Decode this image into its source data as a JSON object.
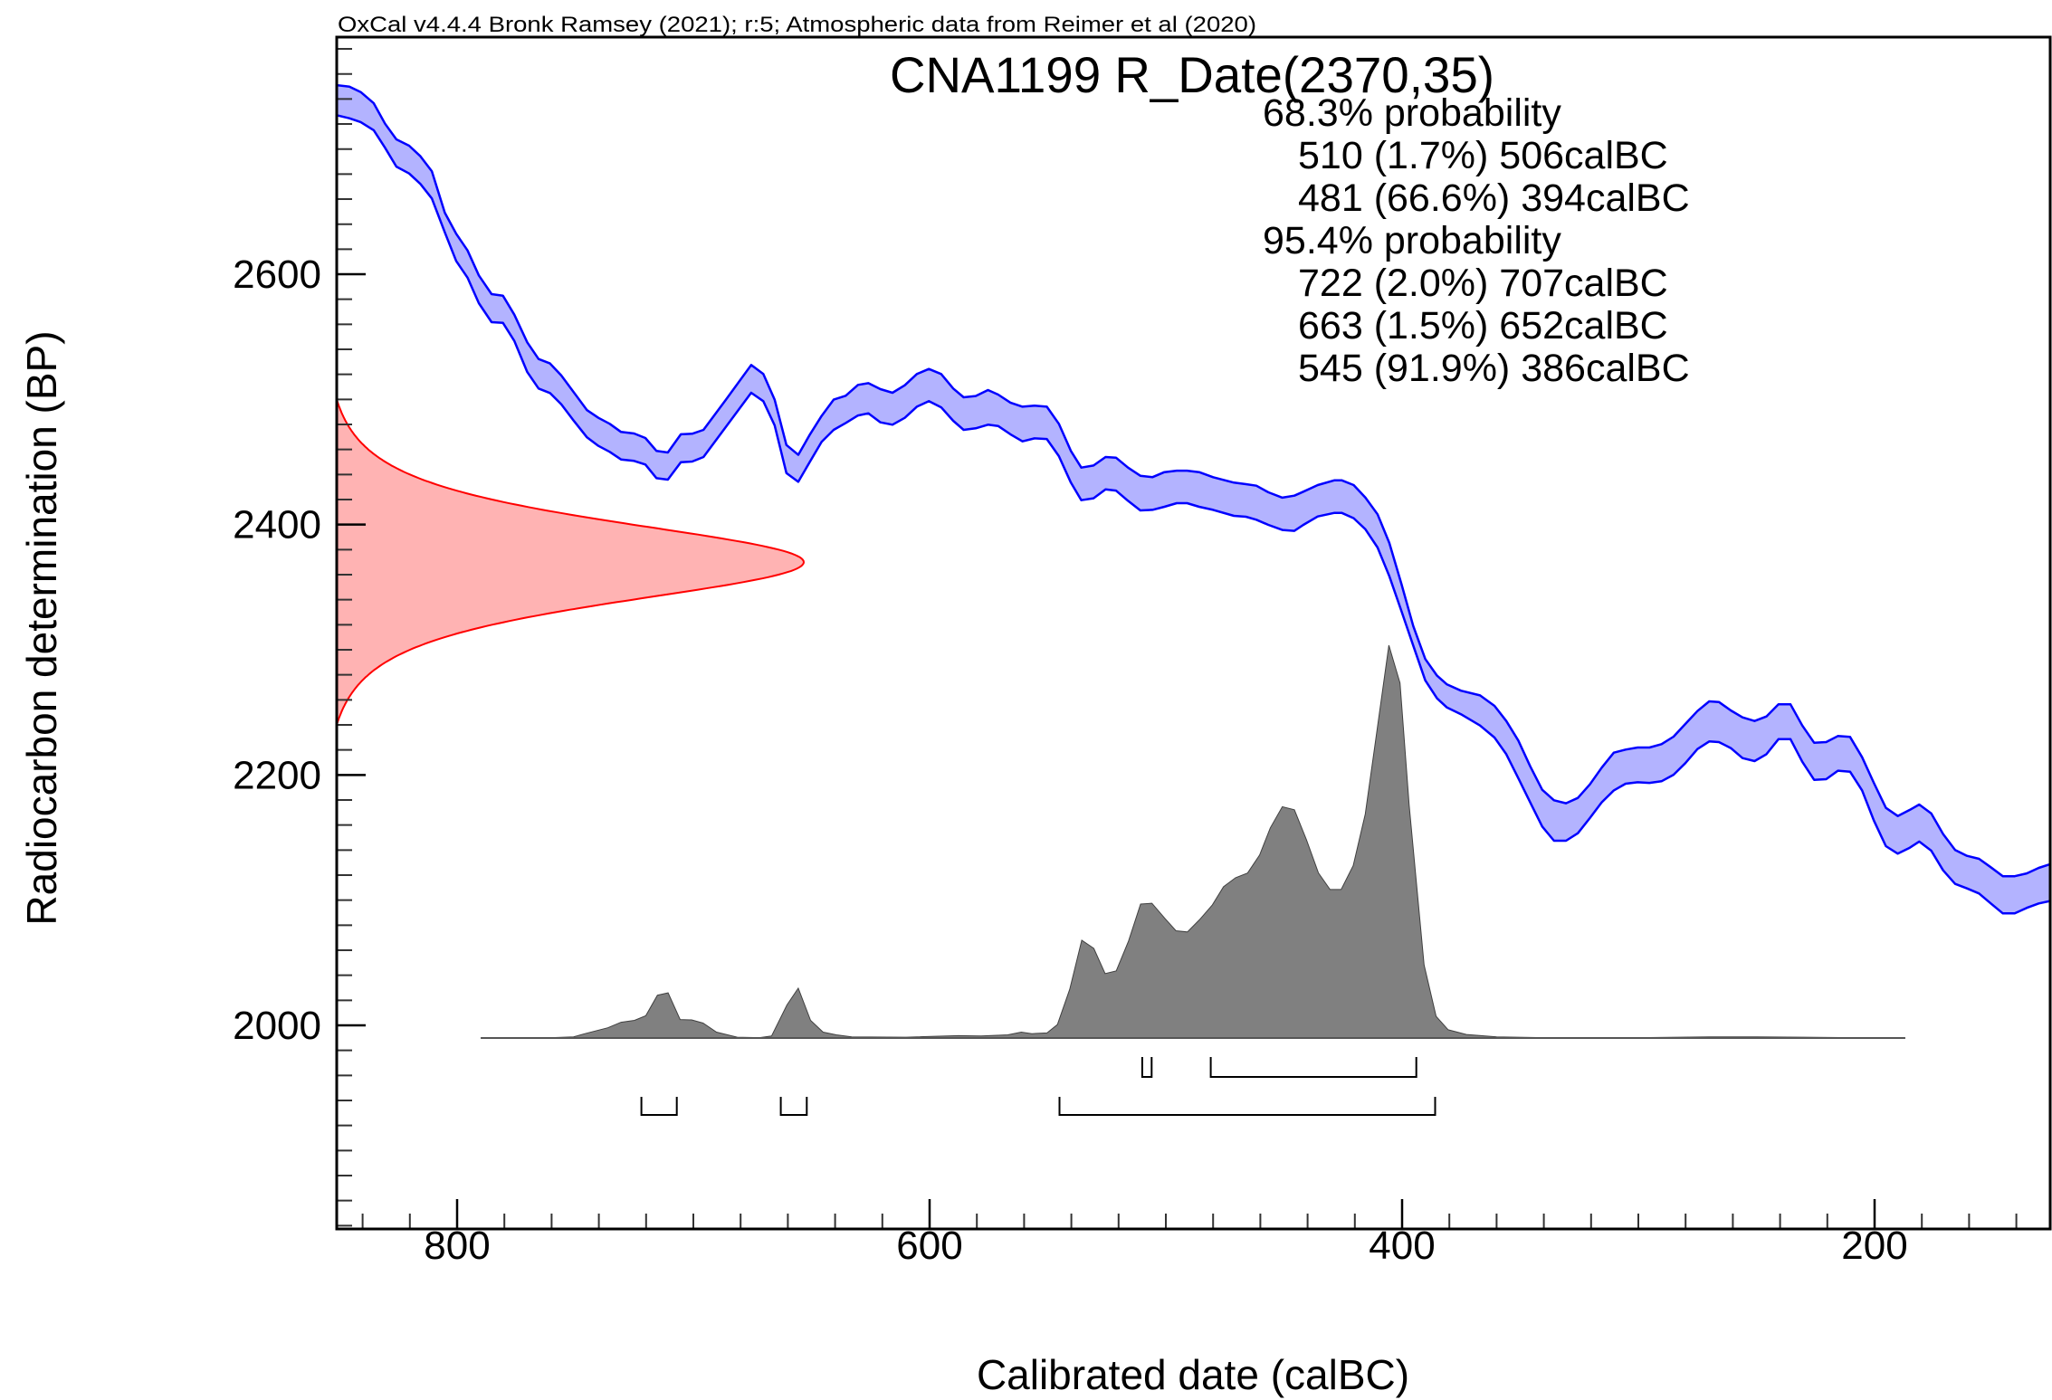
{
  "header": "OxCal v4.4.4 Bronk Ramsey (2021); r:5; Atmospheric data from Reimer et al (2020)",
  "chart_data": {
    "type": "area",
    "title": "CNA1199 R_Date(2370,35)",
    "xlabel": "Calibrated date (calBC)",
    "ylabel": "Radiocarbon determination (BP)",
    "xlim": [
      851,
      126
    ],
    "ylim": [
      1837,
      2789
    ],
    "x_ticks": [
      800,
      600,
      400,
      200
    ],
    "y_ticks": [
      2000,
      2200,
      2400,
      2600
    ],
    "x_minor_step": 20,
    "y_minor_step": 20,
    "grid": false,
    "radiocarbon_date": {
      "mean": 2370,
      "sd": 35,
      "bp_range": [
        2240,
        2500
      ],
      "color": "#ff0000",
      "fill": "#ffb3b3"
    },
    "calibration_curve": {
      "color": "#0000ff",
      "fill": "#b3b3ff",
      "year": [
        851,
        845.6,
        840.8,
        835.3,
        830.5,
        825.7,
        820.3,
        815.5,
        810.7,
        805.2,
        800.4,
        795.6,
        790.8,
        785.4,
        780.6,
        775.8,
        770.3,
        765.5,
        760.7,
        755.9,
        751.1,
        745,
        740.2,
        735.4,
        730.6,
        725.1,
        720.3,
        715.6,
        710.8,
        705.3,
        700.5,
        695.7,
        686.2,
        675.5,
        670.4,
        665.6,
        660.6,
        655.6,
        650.6,
        645.7,
        640.6,
        635.5,
        630.3,
        625.9,
        620.8,
        615.7,
        610.5,
        605.4,
        600.3,
        595.1,
        590,
        585.6,
        580.5,
        575.3,
        571,
        565.8,
        560.7,
        555.6,
        550.4,
        545.3,
        540.2,
        535.8,
        530.6,
        525.5,
        521.1,
        516,
        510.8,
        505.7,
        500.6,
        495.4,
        491,
        485.9,
        480,
        471.2,
        466.1,
        461.7,
        456.6,
        450.7,
        445.6,
        441.8,
        435.7,
        428.6,
        425.6,
        420.5,
        415.5,
        410.4,
        405.4,
        400.3,
        395.3,
        390.2,
        385.2,
        381.1,
        375.1,
        367,
        360.9,
        355.9,
        350.8,
        345.8,
        340.7,
        335.7,
        330.6,
        325.6,
        320.5,
        315.5,
        310.4,
        305.4,
        300.3,
        295.3,
        290.2,
        285.1,
        280.1,
        275,
        270,
        265.9,
        260.9,
        255.9,
        250.8,
        245.8,
        240.7,
        235.6,
        230.6,
        225.6,
        220.5,
        215.5,
        210.4,
        205.3,
        200.3,
        195.2,
        190.2,
        185.1,
        181.1,
        176,
        171,
        165.9,
        160.9,
        155.8,
        150.8,
        145.7,
        140.7,
        135.6,
        130.5,
        125.7
      ],
      "upper_bp": [
        2751,
        2749.9,
        2745.5,
        2736.6,
        2720.2,
        2707.7,
        2702.7,
        2694.2,
        2682.2,
        2649.2,
        2632.3,
        2619,
        2599.1,
        2584.1,
        2582.9,
        2567.7,
        2545.6,
        2532.3,
        2528.7,
        2519.1,
        2507,
        2491.4,
        2485.3,
        2480.5,
        2474,
        2472.8,
        2469.2,
        2458.8,
        2457.6,
        2472.1,
        2472.6,
        2475.7,
        2499.8,
        2527.5,
        2520.3,
        2499.8,
        2463.6,
        2455.7,
        2472.1,
        2486.8,
        2499.8,
        2502.9,
        2511.6,
        2513,
        2508.2,
        2505.3,
        2511.3,
        2520.3,
        2524.3,
        2520.3,
        2508.7,
        2501.7,
        2502.7,
        2507.5,
        2503.9,
        2497.4,
        2494.2,
        2495,
        2494.2,
        2480.5,
        2458.8,
        2445.5,
        2447.2,
        2454,
        2453.5,
        2445.5,
        2439,
        2437.9,
        2441.9,
        2443.1,
        2443.1,
        2441.9,
        2437.9,
        2433.5,
        2432.3,
        2431.1,
        2425.8,
        2421.5,
        2423.1,
        2426.3,
        2431.6,
        2435.4,
        2435.4,
        2431.6,
        2421.5,
        2408.2,
        2385.3,
        2352.8,
        2319,
        2292.6,
        2279.3,
        2272.5,
        2267.3,
        2263.6,
        2255.2,
        2243.1,
        2227.5,
        2207,
        2188.2,
        2179.8,
        2177.4,
        2181.7,
        2192.5,
        2205.8,
        2217.8,
        2220.3,
        2221.9,
        2221.9,
        2224.6,
        2230.6,
        2240.7,
        2251.1,
        2258.8,
        2258.3,
        2251.6,
        2246,
        2243.1,
        2246.7,
        2256.4,
        2256.4,
        2239.5,
        2225.8,
        2226.3,
        2231.1,
        2230.4,
        2214.2,
        2193.7,
        2173.7,
        2167.2,
        2172.1,
        2176.4,
        2169.2,
        2152.8,
        2140,
        2135.4,
        2133,
        2126.3,
        2119.1,
        2119.1,
        2121.4,
        2125.8,
        2128.7
      ],
      "lower_bp": [
        2727,
        2724.6,
        2721.5,
        2715,
        2701,
        2686,
        2680.5,
        2672.1,
        2660.5,
        2633.5,
        2610.6,
        2597.3,
        2576.9,
        2561.7,
        2561.2,
        2546.7,
        2521.9,
        2508.7,
        2505.1,
        2496.1,
        2484.1,
        2469.7,
        2462.9,
        2458.1,
        2452,
        2450.9,
        2448,
        2437.1,
        2435.9,
        2449.9,
        2450.4,
        2454,
        2478.1,
        2505.3,
        2498.6,
        2479.3,
        2441.2,
        2434.2,
        2450.4,
        2466.1,
        2475.7,
        2481.2,
        2487.2,
        2488.9,
        2481.7,
        2479.8,
        2485.3,
        2494.2,
        2498.6,
        2493.7,
        2482.9,
        2475.7,
        2476.9,
        2479.8,
        2478.8,
        2472.1,
        2466.5,
        2468.9,
        2468.4,
        2454.7,
        2433.5,
        2419.5,
        2421,
        2428.2,
        2427.2,
        2419,
        2411.3,
        2411.8,
        2414.2,
        2417.1,
        2417.1,
        2414.2,
        2411.8,
        2407,
        2406.3,
        2403.9,
        2399.8,
        2395.7,
        2395,
        2399.8,
        2406.5,
        2409.4,
        2409.4,
        2405.1,
        2396.2,
        2381.7,
        2358.8,
        2331.1,
        2303.4,
        2275.6,
        2261.2,
        2254,
        2248.5,
        2239.5,
        2229.9,
        2216.6,
        2197.4,
        2178.1,
        2158.8,
        2147.5,
        2147.5,
        2153.5,
        2165.6,
        2178.1,
        2187.7,
        2193,
        2194.2,
        2193.7,
        2195,
        2200.2,
        2209.4,
        2220.7,
        2226.8,
        2226.3,
        2221.5,
        2213.5,
        2211.1,
        2216.6,
        2228.6,
        2228.6,
        2210.6,
        2196.1,
        2196.6,
        2203.4,
        2202.6,
        2187.7,
        2163.6,
        2143.1,
        2137.1,
        2141.9,
        2146.8,
        2139.5,
        2123.8,
        2113,
        2109.4,
        2105.3,
        2097.4,
        2089.4,
        2089.4,
        2093.8,
        2097.4,
        2099.3
      ]
    },
    "posterior": {
      "fill": "#808080",
      "year": [
        790,
        770,
        760,
        750.7,
        745.9,
        736.2,
        730.6,
        724.9,
        720.1,
        715.2,
        710.7,
        705.6,
        700.7,
        695.9,
        690.2,
        681.4,
        672,
        666.9,
        660.4,
        655.6,
        650.4,
        645.1,
        639.5,
        633,
        610,
        587.9,
        578.2,
        566.9,
        561.2,
        556.7,
        550.3,
        545.9,
        540.7,
        535.6,
        530.5,
        525.7,
        521,
        515.8,
        510.7,
        505.9,
        500.5,
        495.7,
        490.9,
        485.8,
        480.3,
        475.6,
        470.5,
        465.4,
        460.3,
        455.8,
        450.7,
        445.6,
        440.5,
        435.4,
        430.5,
        425.8,
        420.7,
        415.6,
        411.1,
        405.6,
        400.9,
        397,
        390.7,
        385.6,
        380.5,
        372.8,
        360,
        340,
        300,
        270,
        250,
        230,
        210,
        187
      ],
      "relative_density": [
        0,
        0,
        0.001,
        0.003,
        0.011,
        0.026,
        0.04,
        0.045,
        0.057,
        0.109,
        0.115,
        0.047,
        0.046,
        0.038,
        0.015,
        0.002,
        0.001,
        0.005,
        0.084,
        0.127,
        0.045,
        0.015,
        0.008,
        0.003,
        0.002,
        0.006,
        0.005,
        0.008,
        0.015,
        0.011,
        0.013,
        0.034,
        0.124,
        0.249,
        0.228,
        0.164,
        0.171,
        0.247,
        0.341,
        0.343,
        0.305,
        0.273,
        0.27,
        0.301,
        0.339,
        0.385,
        0.408,
        0.42,
        0.466,
        0.535,
        0.589,
        0.581,
        0.505,
        0.42,
        0.378,
        0.378,
        0.439,
        0.57,
        0.762,
        1,
        0.904,
        0.593,
        0.186,
        0.055,
        0.021,
        0.009,
        0.003,
        0.001,
        0.001,
        0.003,
        0.003,
        0.002,
        0.001,
        0
      ]
    },
    "summary": [
      {
        "label": "68.3% probability",
        "ranges": [
          {
            "text": "510 (1.7%) 506calBC",
            "from": 510,
            "to": 506,
            "percent": 1.7
          },
          {
            "text": "481 (66.6%) 394calBC",
            "from": 481,
            "to": 394,
            "percent": 66.6
          }
        ]
      },
      {
        "label": "95.4% probability",
        "ranges": [
          {
            "text": "722 (2.0%) 707calBC",
            "from": 722,
            "to": 707,
            "percent": 2.0
          },
          {
            "text": "663 (1.5%) 652calBC",
            "from": 663,
            "to": 652,
            "percent": 1.5
          },
          {
            "text": "545 (91.9%) 386calBC",
            "from": 545,
            "to": 386,
            "percent": 91.9
          }
        ]
      }
    ]
  }
}
